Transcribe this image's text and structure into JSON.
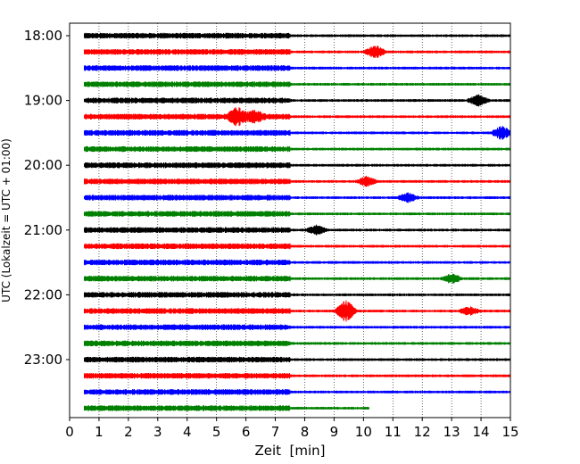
{
  "chart_data": {
    "type": "line",
    "title": "",
    "xlabel": "Zeit  [min]",
    "ylabel": "UTC (Lokalzeit = UTC + 01:00)",
    "xlim": [
      0,
      15
    ],
    "x_ticks": [
      0,
      1,
      2,
      3,
      4,
      5,
      6,
      7,
      8,
      9,
      10,
      11,
      12,
      13,
      14,
      15
    ],
    "y_ticks": [
      "18:00",
      "19:00",
      "20:00",
      "21:00",
      "22:00",
      "23:00"
    ],
    "grid": "vertical dotted at each minute",
    "trace_interval_min": 15,
    "color_cycle": [
      "#000000",
      "#ff0000",
      "#0000ff",
      "#008000"
    ],
    "series": [
      {
        "start": "18:00",
        "x_start": 0.5,
        "x_end": 15,
        "events": []
      },
      {
        "start": "18:15",
        "x_start": 0.5,
        "x_end": 15,
        "events": [
          {
            "x": 10.4,
            "amp": 2.2
          }
        ]
      },
      {
        "start": "18:30",
        "x_start": 0.5,
        "x_end": 15,
        "events": []
      },
      {
        "start": "18:45",
        "x_start": 0.5,
        "x_end": 15,
        "events": []
      },
      {
        "start": "19:00",
        "x_start": 0.5,
        "x_end": 15,
        "events": [
          {
            "x": 13.9,
            "amp": 2.0
          }
        ]
      },
      {
        "start": "19:15",
        "x_start": 0.5,
        "x_end": 15,
        "events": [
          {
            "x": 5.7,
            "amp": 3.0
          },
          {
            "x": 6.3,
            "amp": 1.8
          }
        ]
      },
      {
        "start": "19:30",
        "x_start": 0.5,
        "x_end": 15,
        "events": [
          {
            "x": 14.7,
            "amp": 2.4
          }
        ]
      },
      {
        "start": "19:45",
        "x_start": 0.5,
        "x_end": 15,
        "events": []
      },
      {
        "start": "20:00",
        "x_start": 0.5,
        "x_end": 15,
        "events": []
      },
      {
        "start": "20:15",
        "x_start": 0.5,
        "x_end": 15,
        "events": [
          {
            "x": 10.1,
            "amp": 1.6
          }
        ]
      },
      {
        "start": "20:30",
        "x_start": 0.5,
        "x_end": 15,
        "events": [
          {
            "x": 11.5,
            "amp": 1.6
          }
        ]
      },
      {
        "start": "20:45",
        "x_start": 0.5,
        "x_end": 15,
        "events": []
      },
      {
        "start": "21:00",
        "x_start": 0.5,
        "x_end": 15,
        "events": [
          {
            "x": 8.4,
            "amp": 1.6
          }
        ]
      },
      {
        "start": "21:15",
        "x_start": 0.5,
        "x_end": 15,
        "events": []
      },
      {
        "start": "21:30",
        "x_start": 0.5,
        "x_end": 15,
        "events": []
      },
      {
        "start": "21:45",
        "x_start": 0.5,
        "x_end": 15,
        "events": [
          {
            "x": 13.0,
            "amp": 1.6
          }
        ]
      },
      {
        "start": "22:00",
        "x_start": 0.5,
        "x_end": 15,
        "events": []
      },
      {
        "start": "22:15",
        "x_start": 0.5,
        "x_end": 15,
        "events": [
          {
            "x": 9.4,
            "amp": 4.0
          },
          {
            "x": 13.6,
            "amp": 1.5
          }
        ]
      },
      {
        "start": "22:30",
        "x_start": 0.5,
        "x_end": 15,
        "events": []
      },
      {
        "start": "22:45",
        "x_start": 0.5,
        "x_end": 15,
        "events": []
      },
      {
        "start": "23:00",
        "x_start": 0.5,
        "x_end": 15,
        "events": []
      },
      {
        "start": "23:15",
        "x_start": 0.5,
        "x_end": 15,
        "events": []
      },
      {
        "start": "23:30",
        "x_start": 0.5,
        "x_end": 15,
        "events": []
      },
      {
        "start": "23:45",
        "x_start": 0.5,
        "x_end": 10.2,
        "events": []
      }
    ]
  }
}
